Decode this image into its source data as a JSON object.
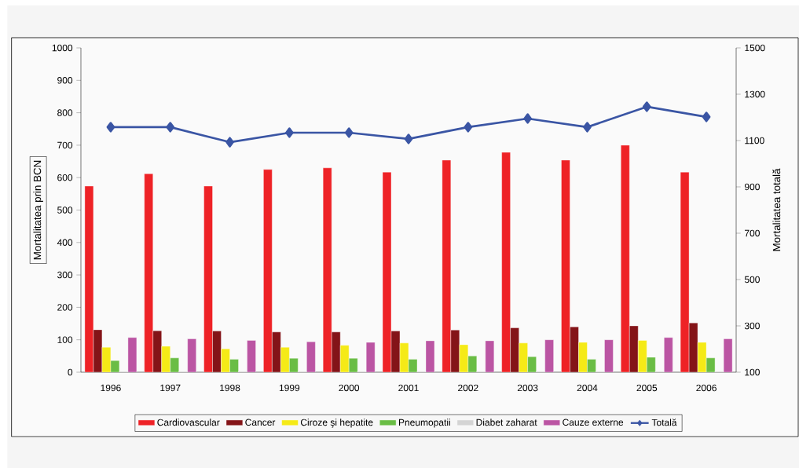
{
  "chart_data": {
    "type": "bar",
    "ylabel": "Mortalitatea prin BCN",
    "y2label": "Mortalitatea totală",
    "categories": [
      "1996",
      "1997",
      "1998",
      "1999",
      "2000",
      "2001",
      "2002",
      "2003",
      "2004",
      "2005",
      "2006"
    ],
    "series": [
      {
        "name": "Cardiovascular",
        "color": "#ee2226",
        "values": [
          574,
          612,
          574,
          625,
          630,
          617,
          654,
          678,
          654,
          700,
          617
        ]
      },
      {
        "name": "Cancer",
        "color": "#841418",
        "values": [
          131,
          128,
          127,
          124,
          124,
          127,
          130,
          137,
          140,
          143,
          152
        ]
      },
      {
        "name": "Ciroze şi hepatite",
        "color": "#f5ea17",
        "values": [
          77,
          80,
          72,
          77,
          83,
          90,
          85,
          90,
          92,
          98,
          92
        ]
      },
      {
        "name": "Pneumopatii",
        "color": "#6abd45",
        "values": [
          36,
          44,
          40,
          43,
          43,
          40,
          50,
          48,
          40,
          46,
          44
        ]
      },
      {
        "name": "Diabet zaharat",
        "color": "#d4d4d4",
        "values": [
          3,
          3,
          3,
          3,
          3,
          3,
          3,
          3,
          3,
          3,
          3
        ]
      },
      {
        "name": "Cauze externe",
        "color": "#bb55a3",
        "values": [
          107,
          103,
          98,
          94,
          92,
          97,
          97,
          100,
          100,
          107,
          103
        ]
      },
      {
        "name": "Totală",
        "type": "line",
        "axis": "y2",
        "marker": "diamond",
        "color": "#3a55a4",
        "values": [
          1158,
          1158,
          1093,
          1134,
          1134,
          1107,
          1158,
          1195,
          1158,
          1246,
          1202
        ]
      }
    ],
    "ylim": [
      0,
      1000
    ],
    "yticks": [
      0,
      100,
      200,
      300,
      400,
      500,
      600,
      700,
      800,
      900,
      1000
    ],
    "y2lim": [
      100,
      1500
    ],
    "y2ticks": [
      100,
      300,
      500,
      700,
      900,
      1100,
      1300,
      1500
    ],
    "legend": "bottom"
  }
}
